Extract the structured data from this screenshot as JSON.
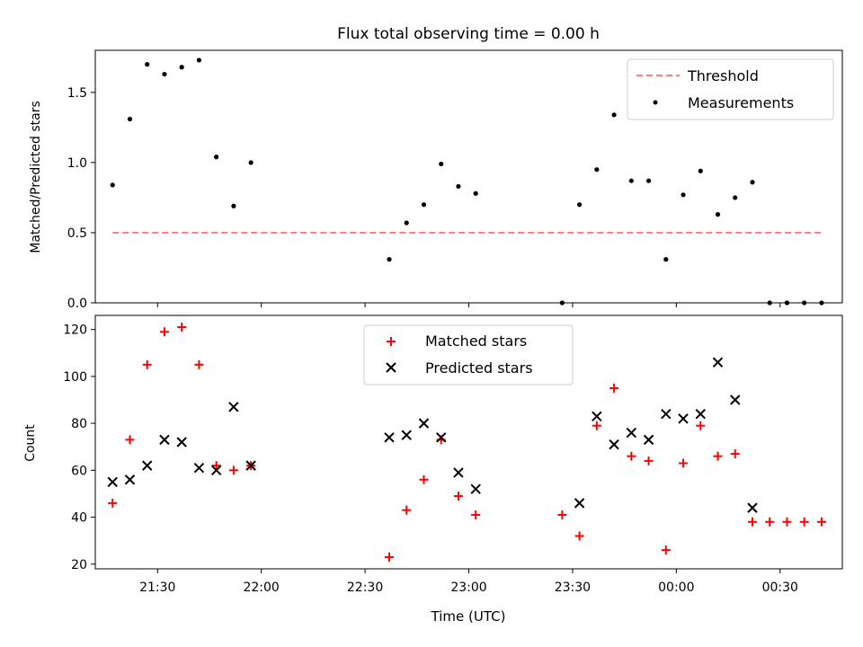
{
  "chart_data": [
    {
      "type": "scatter",
      "title": "Flux total observing time = 0.00 h",
      "xlabel": "",
      "ylabel": "Matched/Predicted stars",
      "x_unit": "time (UTC)",
      "xlim": [
        "21:12",
        "00:48"
      ],
      "ylim": [
        0,
        1.8
      ],
      "yticks": [
        0.0,
        0.5,
        1.0,
        1.5
      ],
      "ytick_labels": [
        "0.0",
        "0.5",
        "1.0",
        "1.5"
      ],
      "xticks": [
        "21:30",
        "22:00",
        "22:30",
        "23:00",
        "23:30",
        "00:00",
        "00:30"
      ],
      "legend": {
        "position": "top-right",
        "labels": [
          "Threshold",
          "Measurements"
        ]
      },
      "series": [
        {
          "name": "Threshold",
          "style": "dashed-line",
          "color": "#ff7f7f",
          "x": [
            "21:17",
            "00:42"
          ],
          "values": [
            0.5,
            0.5
          ]
        },
        {
          "name": "Measurements",
          "style": "dot",
          "color": "#000000",
          "x": [
            "21:17",
            "21:22",
            "21:27",
            "21:32",
            "21:37",
            "21:42",
            "21:47",
            "21:52",
            "21:57",
            "22:37",
            "22:42",
            "22:47",
            "22:52",
            "22:57",
            "23:02",
            "23:27",
            "23:32",
            "23:37",
            "23:42",
            "23:47",
            "23:52",
            "23:57",
            "00:02",
            "00:07",
            "00:12",
            "00:17",
            "00:22",
            "00:27",
            "00:32",
            "00:37",
            "00:42"
          ],
          "values": [
            0.84,
            1.31,
            1.7,
            1.63,
            1.68,
            1.73,
            1.04,
            0.69,
            1.0,
            0.31,
            0.57,
            0.7,
            0.99,
            0.83,
            0.78,
            0.0,
            0.7,
            0.95,
            1.34,
            0.87,
            0.87,
            0.31,
            0.77,
            0.94,
            0.63,
            0.75,
            0.86,
            0.0,
            0.0,
            0.0,
            0.0
          ]
        }
      ]
    },
    {
      "type": "scatter",
      "title": "",
      "xlabel": "Time (UTC)",
      "ylabel": "Count",
      "xlim": [
        "21:12",
        "00:48"
      ],
      "ylim": [
        18,
        126
      ],
      "yticks": [
        20,
        40,
        60,
        80,
        100,
        120
      ],
      "ytick_labels": [
        "20",
        "40",
        "60",
        "80",
        "100",
        "120"
      ],
      "xticks": [
        "21:30",
        "22:00",
        "22:30",
        "23:00",
        "23:30",
        "00:00",
        "00:30"
      ],
      "legend": {
        "position": "top-center",
        "labels": [
          "Matched stars",
          "Predicted stars"
        ]
      },
      "series": [
        {
          "name": "Matched stars",
          "marker": "plus",
          "color": "#ff0000",
          "x": [
            "21:17",
            "21:22",
            "21:27",
            "21:32",
            "21:37",
            "21:42",
            "21:47",
            "21:52",
            "21:57",
            "22:37",
            "22:42",
            "22:47",
            "22:52",
            "22:57",
            "23:02",
            "23:27",
            "23:32",
            "23:37",
            "23:42",
            "23:47",
            "23:52",
            "23:57",
            "00:02",
            "00:07",
            "00:12",
            "00:17",
            "00:22",
            "00:27",
            "00:32",
            "00:37",
            "00:42"
          ],
          "values": [
            46,
            73,
            105,
            119,
            121,
            105,
            62,
            60,
            62,
            23,
            43,
            56,
            73,
            49,
            41,
            41,
            32,
            79,
            95,
            66,
            64,
            26,
            63,
            79,
            66,
            67,
            38,
            38,
            38,
            38,
            38
          ]
        },
        {
          "name": "Predicted stars",
          "marker": "x",
          "color": "#000000",
          "x": [
            "21:17",
            "21:22",
            "21:27",
            "21:32",
            "21:37",
            "21:42",
            "21:47",
            "21:52",
            "21:57",
            "22:37",
            "22:42",
            "22:47",
            "22:52",
            "22:57",
            "23:02",
            "23:32",
            "23:37",
            "23:42",
            "23:47",
            "23:52",
            "23:57",
            "00:02",
            "00:07",
            "00:12",
            "00:17",
            "00:22"
          ],
          "values": [
            55,
            56,
            62,
            73,
            72,
            61,
            60,
            87,
            62,
            74,
            75,
            80,
            74,
            59,
            52,
            46,
            83,
            71,
            76,
            73,
            84,
            82,
            84,
            106,
            90,
            44
          ]
        }
      ]
    }
  ]
}
